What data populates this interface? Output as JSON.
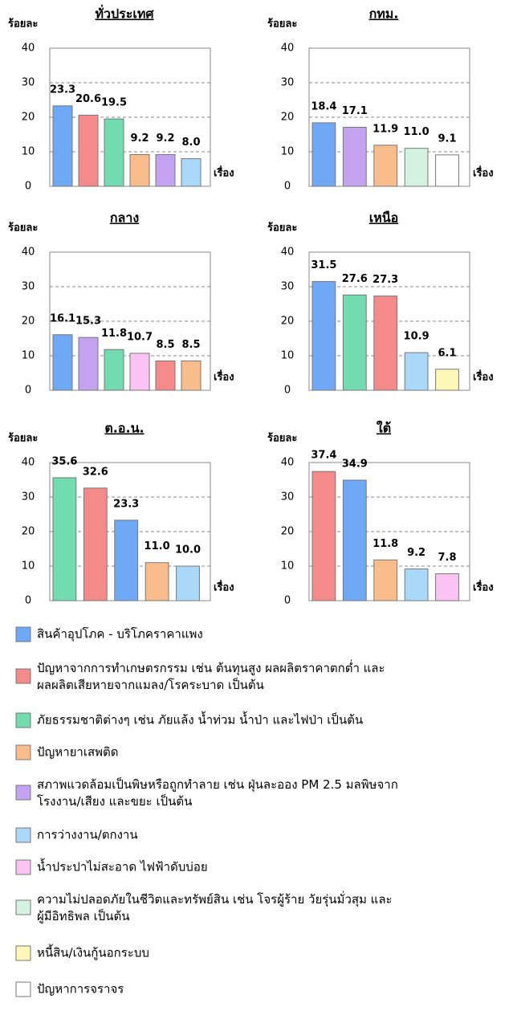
{
  "chart_data": [
    {
      "type": "bar",
      "title": "ทั่วประเทศ",
      "y_label": "ร้อยละ",
      "x_label": "เรื่อง",
      "values": [
        23.3,
        20.6,
        19.5,
        9.2,
        9.2,
        8
      ],
      "value_labels": [
        "23.3",
        "20.6",
        "19.5",
        "9.2",
        "9.2",
        "8.0"
      ],
      "colors": [
        "#6fa8f5",
        "#f58a8a",
        "#72dcb0",
        "#f9bd8c",
        "#c3a3f0",
        "#a9d8f8"
      ],
      "ylim": [
        0,
        40
      ],
      "yticks": [
        0,
        10,
        20,
        30,
        40
      ],
      "grid": true
    },
    {
      "type": "bar",
      "title": "กทม.",
      "y_label": "ร้อยละ",
      "x_label": "เรื่อง",
      "values": [
        18.4,
        17.1,
        11.9,
        11,
        9.1
      ],
      "value_labels": [
        "18.4",
        "17.1",
        "11.9",
        "11.0",
        "9.1"
      ],
      "colors": [
        "#6fa8f5",
        "#c3a3f0",
        "#f9bd8c",
        "#d3f3e0",
        "#ffffff"
      ],
      "ylim": [
        0,
        40
      ],
      "yticks": [
        0,
        10,
        20,
        30,
        40
      ],
      "grid": true
    },
    {
      "type": "bar",
      "title": "กลาง",
      "y_label": "ร้อยละ",
      "x_label": "เรื่อง",
      "values": [
        16.1,
        15.3,
        11.8,
        10.7,
        8.5,
        8.5
      ],
      "value_labels": [
        "16.1",
        "15.3",
        "11.8",
        "10.7",
        "8.5",
        "8.5"
      ],
      "colors": [
        "#6fa8f5",
        "#c3a3f0",
        "#72dcb0",
        "#fbc3f3",
        "#f58a8a",
        "#f9bd8c"
      ],
      "ylim": [
        0,
        40
      ],
      "yticks": [
        0,
        10,
        20,
        30,
        40
      ],
      "grid": true
    },
    {
      "type": "bar",
      "title": "เหนือ",
      "y_label": "ร้อยละ",
      "x_label": "เรื่อง",
      "values": [
        31.5,
        27.6,
        27.3,
        10.9,
        6.1
      ],
      "value_labels": [
        "31.5",
        "27.6",
        "27.3",
        "10.9",
        "6.1"
      ],
      "colors": [
        "#6fa8f5",
        "#72dcb0",
        "#f58a8a",
        "#a9d8f8",
        "#fdf7b8"
      ],
      "ylim": [
        0,
        40
      ],
      "yticks": [
        0,
        10,
        20,
        30,
        40
      ],
      "grid": true
    },
    {
      "type": "bar",
      "title": "ต.อ.น.",
      "y_label": "ร้อยละ",
      "x_label": "เรื่อง",
      "values": [
        35.6,
        32.6,
        23.3,
        11,
        10
      ],
      "value_labels": [
        "35.6",
        "32.6",
        "23.3",
        "11.0",
        "10.0"
      ],
      "colors": [
        "#72dcb0",
        "#f58a8a",
        "#6fa8f5",
        "#f9bd8c",
        "#a9d8f8"
      ],
      "ylim": [
        0,
        40
      ],
      "yticks": [
        0,
        10,
        20,
        30,
        40
      ],
      "grid": true
    },
    {
      "type": "bar",
      "title": "ใต้",
      "y_label": "ร้อยละ",
      "x_label": "เรื่อง",
      "values": [
        37.4,
        34.9,
        11.8,
        9.2,
        7.8
      ],
      "value_labels": [
        "37.4",
        "34.9",
        "11.8",
        "9.2",
        "7.8"
      ],
      "colors": [
        "#f58a8a",
        "#6fa8f5",
        "#f9bd8c",
        "#a9d8f8",
        "#fbc3f3"
      ],
      "ylim": [
        0,
        40
      ],
      "yticks": [
        0,
        10,
        20,
        30,
        40
      ],
      "grid": true
    }
  ],
  "legend": [
    {
      "label": "สินค้าอุปโภค - บริโภคราคาแพง",
      "color": "#6fa8f5"
    },
    {
      "label": "ปัญหาจากการทำเกษตรกรรม เช่น ต้นทุนสูง ผลผลิตราคาตกต่ำ และ\nผลผลิตเสียหายจากแมลง/โรคระบาด เป็นต้น",
      "color": "#f58a8a"
    },
    {
      "label": "ภัยธรรมชาติต่างๆ เช่น ภัยแล้ง น้ำท่วม น้ำป่า และไฟป่า เป็นต้น",
      "color": "#72dcb0"
    },
    {
      "label": "ปัญหายาเสพติด",
      "color": "#f9bd8c"
    },
    {
      "label": "สภาพแวดล้อมเป็นพิษหรือถูกทำลาย เช่น ฝุ่นละออง PM 2.5 มลพิษจาก\nโรงงาน/เสียง และขยะ เป็นต้น",
      "color": "#c3a3f0"
    },
    {
      "label": "การว่างงาน/ตกงาน",
      "color": "#a9d8f8"
    },
    {
      "label": "น้ำประปาไม่สะอาด ไฟฟ้าดับบ่อย",
      "color": "#fbc3f3"
    },
    {
      "label": "ความไม่ปลอดภัยในชีวิตและทรัพย์สิน เช่น โจรผู้ร้าย วัยรุ่นมั่วสุม และ\nผู้มีอิทธิพล เป็นต้น",
      "color": "#d3f3e0"
    },
    {
      "label": "หนี้สิน/เงินกู้นอกระบบ",
      "color": "#fdf7b8"
    },
    {
      "label": "ปัญหาการจราจร",
      "color": "#ffffff"
    }
  ]
}
